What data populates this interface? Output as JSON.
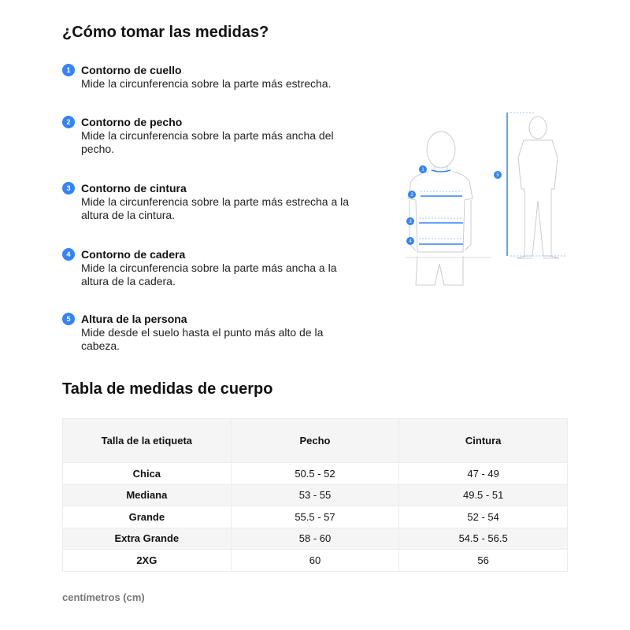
{
  "guide": {
    "title": "¿Cómo tomar las medidas?",
    "steps": [
      {
        "n": "1",
        "title": "Contorno de cuello",
        "desc": "Mide la circunferencia sobre la parte más estrecha."
      },
      {
        "n": "2",
        "title": "Contorno de pecho",
        "desc": "Mide la circunferencia sobre la parte más ancha del pecho."
      },
      {
        "n": "3",
        "title": "Contorno de cintura",
        "desc": "Mide la circunferencia sobre la parte más estrecha a la altura de la cintura."
      },
      {
        "n": "4",
        "title": "Contorno de cadera",
        "desc": "Mide la circunferencia sobre la parte más ancha a la altura de la cadera."
      },
      {
        "n": "5",
        "title": "Altura de la persona",
        "desc": "Mide desde el suelo hasta el punto más alto de la cabeza."
      }
    ]
  },
  "accent": "#3483fa",
  "table": {
    "title": "Tabla de medidas de cuerpo",
    "headers": [
      "Talla de la etiqueta",
      "Pecho",
      "Cintura"
    ],
    "rows": [
      [
        "Chica",
        "50.5 - 52",
        "47 - 49"
      ],
      [
        "Mediana",
        "53 - 55",
        "49.5 - 51"
      ],
      [
        "Grande",
        "55.5 - 57",
        "52 - 54"
      ],
      [
        "Extra Grande",
        "58 - 60",
        "54.5 - 56.5"
      ],
      [
        "2XG",
        "60",
        "56"
      ]
    ],
    "unit": "centímetros (cm)"
  }
}
